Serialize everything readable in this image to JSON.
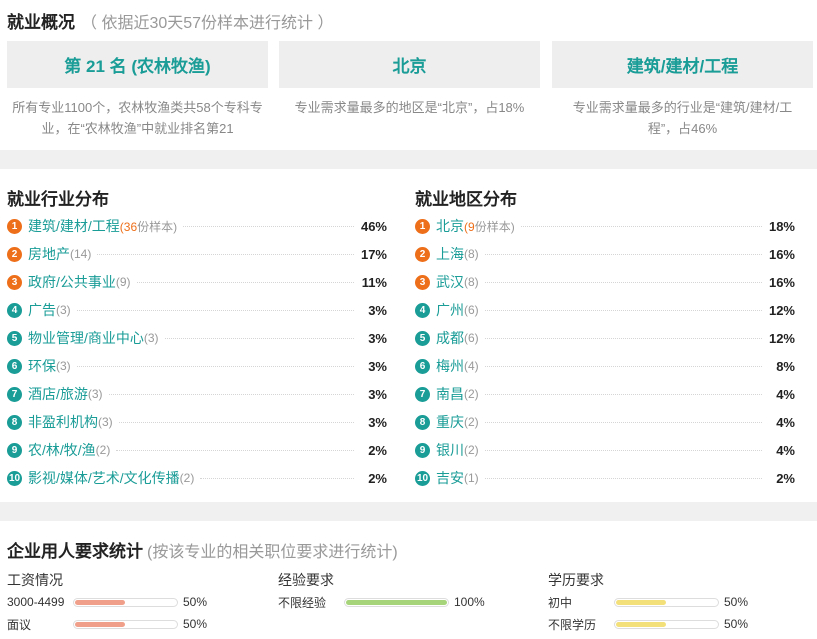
{
  "overview": {
    "title": "就业概况",
    "subtitle": "（ 依据近30天57份样本进行统计 ）",
    "stats": [
      {
        "value": "第 21 名 (农林牧渔)",
        "desc": "所有专业1100个，农林牧渔类共58个专科专业，在“农林牧渔”中就业排名第21"
      },
      {
        "value": "北京",
        "desc": "专业需求量最多的地区是“北京”，占18%"
      },
      {
        "value": "建筑/建材/工程",
        "desc": "专业需求量最多的行业是“建筑/建材/工程”，占46%"
      }
    ]
  },
  "industry": {
    "title": "就业行业分布",
    "items": [
      {
        "rank": "1",
        "name": "建筑/建材/工程",
        "count": "(36份样本)",
        "pct": "46%",
        "hot": true,
        "first": true
      },
      {
        "rank": "2",
        "name": "房地产",
        "count": "(14)",
        "pct": "17%",
        "hot": true
      },
      {
        "rank": "3",
        "name": "政府/公共事业",
        "count": "(9)",
        "pct": "11%",
        "hot": true
      },
      {
        "rank": "4",
        "name": "广告",
        "count": "(3)",
        "pct": "3%",
        "hot": false
      },
      {
        "rank": "5",
        "name": "物业管理/商业中心",
        "count": "(3)",
        "pct": "3%",
        "hot": false
      },
      {
        "rank": "6",
        "name": "环保",
        "count": "(3)",
        "pct": "3%",
        "hot": false
      },
      {
        "rank": "7",
        "name": "酒店/旅游",
        "count": "(3)",
        "pct": "3%",
        "hot": false
      },
      {
        "rank": "8",
        "name": "非盈利机构",
        "count": "(3)",
        "pct": "3%",
        "hot": false
      },
      {
        "rank": "9",
        "name": "农/林/牧/渔",
        "count": "(2)",
        "pct": "2%",
        "hot": false
      },
      {
        "rank": "10",
        "name": "影视/媒体/艺术/文化传播",
        "count": "(2)",
        "pct": "2%",
        "hot": false
      }
    ]
  },
  "region": {
    "title": "就业地区分布",
    "items": [
      {
        "rank": "1",
        "name": "北京",
        "count": "(9份样本)",
        "pct": "18%",
        "hot": true,
        "first": true
      },
      {
        "rank": "2",
        "name": "上海",
        "count": "(8)",
        "pct": "16%",
        "hot": true
      },
      {
        "rank": "3",
        "name": "武汉",
        "count": "(8)",
        "pct": "16%",
        "hot": true
      },
      {
        "rank": "4",
        "name": "广州",
        "count": "(6)",
        "pct": "12%",
        "hot": false
      },
      {
        "rank": "5",
        "name": "成都",
        "count": "(6)",
        "pct": "12%",
        "hot": false
      },
      {
        "rank": "6",
        "name": "梅州",
        "count": "(4)",
        "pct": "8%",
        "hot": false
      },
      {
        "rank": "7",
        "name": "南昌",
        "count": "(2)",
        "pct": "4%",
        "hot": false
      },
      {
        "rank": "8",
        "name": "重庆",
        "count": "(2)",
        "pct": "4%",
        "hot": false
      },
      {
        "rank": "9",
        "name": "银川",
        "count": "(2)",
        "pct": "4%",
        "hot": false
      },
      {
        "rank": "10",
        "name": "吉安",
        "count": "(1)",
        "pct": "2%",
        "hot": false
      }
    ]
  },
  "requirements": {
    "title": "企业用人要求统计",
    "subtitle": "(按该专业的相关职位要求进行统计)",
    "salary": {
      "title": "工资情况",
      "color": "#f0a08a",
      "rows": [
        {
          "label": "3000-4499",
          "value": "50%",
          "frac": 0.5
        },
        {
          "label": "面议",
          "value": "50%",
          "frac": 0.5
        }
      ]
    },
    "experience": {
      "title": "经验要求",
      "color": "#a6d47a",
      "rows": [
        {
          "label": "不限经验",
          "value": "100%",
          "frac": 1.0
        }
      ]
    },
    "education": {
      "title": "学历要求",
      "color": "#f3e07a",
      "rows": [
        {
          "label": "初中",
          "value": "50%",
          "frac": 0.5
        },
        {
          "label": "不限学历",
          "value": "50%",
          "frac": 0.5
        }
      ]
    }
  }
}
